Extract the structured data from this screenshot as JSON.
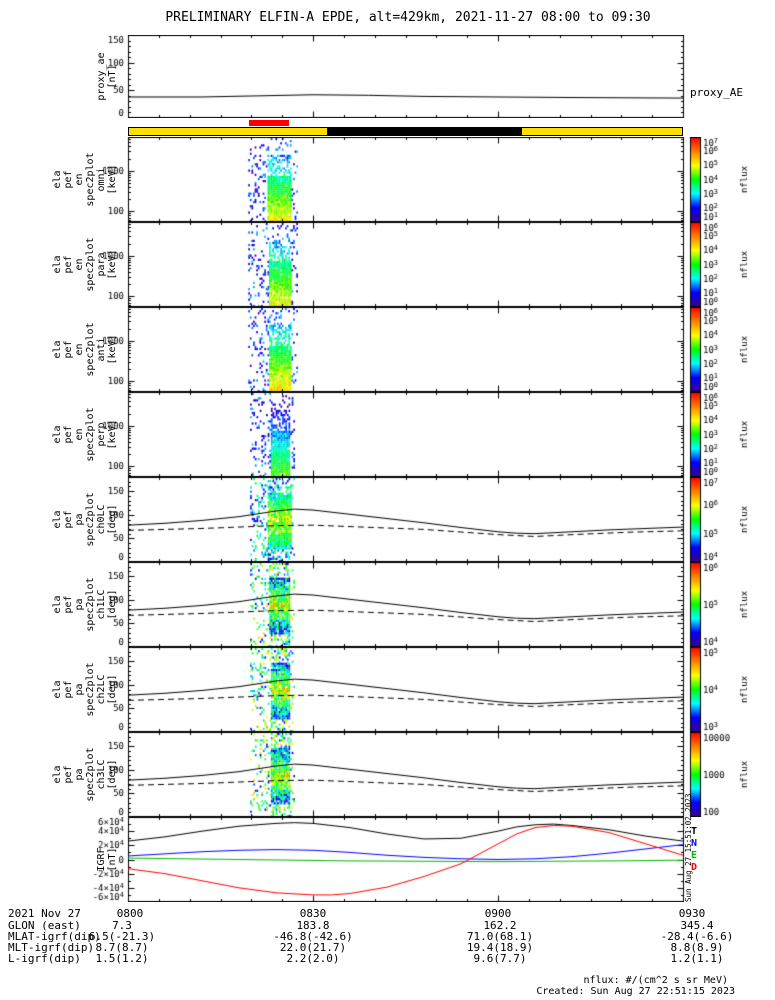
{
  "title": "PRELIMINARY ELFIN-A EPDE, alt=429km, 2021-11-27 08:00 to 09:30",
  "igrf_component_labels": [
    {
      "text": "T",
      "color": "#000000"
    },
    {
      "text": "N",
      "color": "#0000ff"
    },
    {
      "text": "E",
      "color": "#00bb00"
    },
    {
      "text": "D",
      "color": "#ff0000"
    }
  ],
  "footer": {
    "date": "2021 Nov 27",
    "xticks": [
      "0800",
      "0830",
      "0900",
      "0930"
    ],
    "rows": [
      {
        "label": "GLON (east)",
        "values": [
          "7.3",
          "183.8",
          "162.2",
          "345.4"
        ]
      },
      {
        "label": "MLAT-igrf(dip)",
        "values": [
          "6.5(-21.3)",
          "-46.8(-42.6)",
          "71.0(68.1)",
          "-28.4(-6.6)"
        ]
      },
      {
        "label": "MLT-igrf(dip)",
        "values": [
          "8.7(8.7)",
          "22.0(21.7)",
          "19.4(18.9)",
          "8.8(8.9)"
        ]
      },
      {
        "label": "L-igrf(dip)",
        "values": [
          "1.5(1.2)",
          "2.2(2.0)",
          "9.6(7.7)",
          "1.2(1.1)"
        ]
      }
    ],
    "units_note": "nflux: #/(cm^2 s sr MeV)",
    "created": "Created: Sun Aug 27 22:51:15 2023",
    "side_timestamp": "Sun Aug 27 15:51:02 2023"
  },
  "chart_data": {
    "type": "multi-panel time-series and spectrogram stack",
    "x_axis": {
      "start_hour": 8.0,
      "end_hour": 9.5,
      "date": "2021-11-27",
      "tick_hours": [
        8.0,
        8.5,
        9.0,
        9.5
      ],
      "tick_labels": [
        "0800",
        "0830",
        "0900",
        "0930"
      ]
    },
    "status_bar": {
      "base": {
        "color": "#ffdf00",
        "t": [
          8.0,
          9.5
        ]
      },
      "black": {
        "color": "#000000",
        "t": [
          8.538,
          9.065
        ]
      },
      "marker": {
        "color": "#ff0000",
        "t": [
          8.327,
          8.435
        ]
      }
    },
    "losscone_deg": {
      "solid": [
        [
          8.0,
          78
        ],
        [
          8.1,
          82
        ],
        [
          8.2,
          88
        ],
        [
          8.3,
          96
        ],
        [
          8.4,
          108
        ],
        [
          8.45,
          112
        ],
        [
          8.5,
          110
        ],
        [
          8.6,
          101
        ],
        [
          8.7,
          92
        ],
        [
          8.8,
          83
        ],
        [
          8.9,
          73
        ],
        [
          9.0,
          64
        ],
        [
          9.05,
          61
        ],
        [
          9.1,
          60
        ],
        [
          9.2,
          64
        ],
        [
          9.3,
          68
        ],
        [
          9.4,
          71
        ],
        [
          9.5,
          74
        ]
      ],
      "dashed": [
        [
          8.0,
          67
        ],
        [
          8.2,
          71
        ],
        [
          8.4,
          77
        ],
        [
          8.5,
          78
        ],
        [
          8.6,
          75
        ],
        [
          8.8,
          69
        ],
        [
          9.0,
          58
        ],
        [
          9.1,
          54
        ],
        [
          9.2,
          58
        ],
        [
          9.35,
          63
        ],
        [
          9.5,
          66
        ]
      ]
    },
    "panels": [
      {
        "id": "p-proxy",
        "type": "line",
        "right_label": "proxy_AE",
        "ylabel_lines": [
          "proxy_ae",
          "[nT]"
        ],
        "ylim": [
          0,
          150
        ],
        "yticks": [
          0,
          50,
          100,
          150
        ],
        "yminor": 10,
        "series": [
          {
            "name": "proxy_AE",
            "color": "#000000",
            "points": [
              [
                8.0,
                38
              ],
              [
                8.2,
                38
              ],
              [
                8.35,
                40
              ],
              [
                8.5,
                42
              ],
              [
                8.65,
                41
              ],
              [
                8.8,
                39
              ],
              [
                9.0,
                38
              ],
              [
                9.2,
                37
              ],
              [
                9.5,
                36
              ]
            ]
          }
        ]
      },
      {
        "id": "p-spec0",
        "type": "spectrogram",
        "ylabel_lines": [
          "ela",
          "pef",
          "en",
          "spec2plot",
          "omni",
          "[keV]"
        ],
        "yscale": "log",
        "ylim": [
          55,
          6800
        ],
        "ytick_labels": [
          100,
          1000
        ],
        "colorbar": {
          "label": "nflux",
          "format": "pow",
          "exponents": [
            7,
            6,
            5,
            4,
            3,
            2,
            1
          ],
          "clim_log10": [
            1,
            7
          ]
        },
        "burst": {
          "sparse_t": [
            8.325,
            8.455
          ],
          "core_t": [
            8.375,
            8.44
          ],
          "peak_log10": 5.2,
          "seed": 11
        }
      },
      {
        "id": "p-spec1",
        "type": "spectrogram",
        "ylabel_lines": [
          "ela",
          "pef",
          "en",
          "spec2plot",
          "para",
          "[keV]"
        ],
        "yscale": "log",
        "ylim": [
          55,
          6800
        ],
        "ytick_labels": [
          100,
          1000
        ],
        "colorbar": {
          "label": "nflux",
          "format": "pow",
          "exponents": [
            6,
            5,
            4,
            3,
            2,
            1,
            0
          ],
          "clim_log10": [
            0,
            6
          ]
        },
        "burst": {
          "sparse_t": [
            8.325,
            8.455
          ],
          "core_t": [
            8.38,
            8.44
          ],
          "peak_log10": 4.2,
          "seed": 22
        }
      },
      {
        "id": "p-spec2",
        "type": "spectrogram",
        "ylabel_lines": [
          "ela",
          "pef",
          "en",
          "spec2plot",
          "anti",
          "[keV]"
        ],
        "yscale": "log",
        "ylim": [
          55,
          6800
        ],
        "ytick_labels": [
          100,
          1000
        ],
        "colorbar": {
          "label": "nflux",
          "format": "pow",
          "exponents": [
            6,
            5,
            4,
            3,
            2,
            1,
            0
          ],
          "clim_log10": [
            0,
            6
          ]
        },
        "burst": {
          "sparse_t": [
            8.325,
            8.455
          ],
          "core_t": [
            8.378,
            8.44
          ],
          "peak_log10": 4.4,
          "seed": 33
        }
      },
      {
        "id": "p-spec3",
        "type": "spectrogram",
        "ylabel_lines": [
          "ela",
          "pef",
          "en",
          "spec2plot",
          "perp",
          "[keV]"
        ],
        "yscale": "log",
        "ylim": [
          55,
          6800
        ],
        "ytick_labels": [
          100,
          1000
        ],
        "colorbar": {
          "label": "nflux",
          "format": "pow",
          "exponents": [
            6,
            5,
            4,
            3,
            2,
            1,
            0
          ],
          "clim_log10": [
            0,
            6
          ]
        },
        "burst": {
          "sparse_t": [
            8.33,
            8.45
          ],
          "core_t": [
            8.385,
            8.435
          ],
          "peak_log10": 3.4,
          "seed": 44
        }
      },
      {
        "id": "p-pa0",
        "type": "pitch",
        "ylabel_lines": [
          "ela",
          "pef",
          "pa",
          "spec2plot",
          "ch0LC",
          "[deg]"
        ],
        "ylim": [
          0,
          180
        ],
        "yticks": [
          0,
          50,
          100,
          150
        ],
        "yminor": 10,
        "colorbar": {
          "label": "nflux",
          "format": "pow",
          "exponents": [
            7,
            6,
            5,
            4
          ],
          "clim_log10": [
            4,
            7
          ]
        },
        "burst": {
          "sparse_t": [
            8.33,
            8.45
          ],
          "core_t": [
            8.375,
            8.44
          ],
          "peak_log10": 5.9,
          "seed": 55
        }
      },
      {
        "id": "p-pa1",
        "type": "pitch",
        "ylabel_lines": [
          "ela",
          "pef",
          "pa",
          "spec2plot",
          "ch1LC",
          "[deg]"
        ],
        "ylim": [
          0,
          180
        ],
        "yticks": [
          0,
          50,
          100,
          150
        ],
        "yminor": 10,
        "colorbar": {
          "label": "nflux",
          "format": "pow",
          "exponents": [
            6,
            5,
            4
          ],
          "clim_log10": [
            4,
            6
          ]
        },
        "burst": {
          "sparse_t": [
            8.33,
            8.45
          ],
          "core_t": [
            8.378,
            8.438
          ],
          "peak_log10": 5.3,
          "seed": 66
        }
      },
      {
        "id": "p-pa2",
        "type": "pitch",
        "ylabel_lines": [
          "ela",
          "pef",
          "pa",
          "spec2plot",
          "ch2LC",
          "[deg]"
        ],
        "ylim": [
          0,
          180
        ],
        "yticks": [
          0,
          50,
          100,
          150
        ],
        "yminor": 10,
        "colorbar": {
          "label": "nflux",
          "format": "pow",
          "exponents": [
            5,
            4,
            3
          ],
          "clim_log10": [
            3,
            5
          ]
        },
        "burst": {
          "sparse_t": [
            8.33,
            8.45
          ],
          "core_t": [
            8.382,
            8.435
          ],
          "peak_log10": 4.3,
          "seed": 77
        }
      },
      {
        "id": "p-pa3",
        "type": "pitch",
        "ylabel_lines": [
          "ela",
          "pef",
          "pa",
          "spec2plot",
          "ch3LC",
          "[deg]"
        ],
        "ylim": [
          0,
          180
        ],
        "yticks": [
          0,
          50,
          100,
          150
        ],
        "yminor": 10,
        "colorbar": {
          "label": "nflux",
          "format": "linear",
          "exponents": [
            4,
            3,
            2
          ],
          "clim_log10": [
            2,
            4
          ]
        },
        "burst": {
          "sparse_t": [
            8.33,
            8.45
          ],
          "core_t": [
            8.382,
            8.438
          ],
          "peak_log10": 3.3,
          "seed": 88
        }
      },
      {
        "id": "p-igrf",
        "type": "line",
        "ylabel_lines": [
          "IGRF",
          "[nT]"
        ],
        "ylim": [
          -60000,
          60000
        ],
        "yminor": 10000,
        "yticks_pow": [
          {
            "v": 60000,
            "mant": "6"
          },
          {
            "v": 40000,
            "mant": "4"
          },
          {
            "v": 20000,
            "mant": "2"
          },
          {
            "v": 0,
            "mant": "0"
          },
          {
            "v": -20000,
            "mant": "-2"
          },
          {
            "v": -40000,
            "mant": "-4"
          },
          {
            "v": -60000,
            "mant": "-6"
          }
        ],
        "series": [
          {
            "name": "T",
            "color": "#000000",
            "points": [
              [
                8.0,
                26000
              ],
              [
                8.1,
                32000
              ],
              [
                8.2,
                40000
              ],
              [
                8.3,
                47000
              ],
              [
                8.4,
                51000
              ],
              [
                8.45,
                52000
              ],
              [
                8.5,
                51000
              ],
              [
                8.6,
                45000
              ],
              [
                8.7,
                36000
              ],
              [
                8.8,
                29000
              ],
              [
                8.9,
                30000
              ],
              [
                9.0,
                40000
              ],
              [
                9.05,
                46000
              ],
              [
                9.1,
                49000
              ],
              [
                9.15,
                50000
              ],
              [
                9.2,
                48000
              ],
              [
                9.3,
                42000
              ],
              [
                9.4,
                33000
              ],
              [
                9.5,
                26000
              ]
            ]
          },
          {
            "name": "N",
            "color": "#0000ff",
            "points": [
              [
                8.0,
                5000
              ],
              [
                8.1,
                8000
              ],
              [
                8.2,
                11000
              ],
              [
                8.3,
                13000
              ],
              [
                8.4,
                14000
              ],
              [
                8.5,
                13000
              ],
              [
                8.6,
                10000
              ],
              [
                8.7,
                6000
              ],
              [
                8.8,
                3000
              ],
              [
                8.9,
                1000
              ],
              [
                9.0,
                0
              ],
              [
                9.1,
                1000
              ],
              [
                9.2,
                4000
              ],
              [
                9.3,
                9000
              ],
              [
                9.4,
                15000
              ],
              [
                9.5,
                21000
              ]
            ]
          },
          {
            "name": "E",
            "color": "#00bb00",
            "points": [
              [
                8.0,
                2000
              ],
              [
                8.3,
                0
              ],
              [
                8.6,
                -2000
              ],
              [
                9.0,
                -3000
              ],
              [
                9.3,
                -2000
              ],
              [
                9.5,
                -1000
              ]
            ]
          },
          {
            "name": "D",
            "color": "#ff0000",
            "points": [
              [
                8.0,
                -13000
              ],
              [
                8.1,
                -20000
              ],
              [
                8.2,
                -30000
              ],
              [
                8.3,
                -40000
              ],
              [
                8.4,
                -47000
              ],
              [
                8.5,
                -50000
              ],
              [
                8.55,
                -50000
              ],
              [
                8.6,
                -48000
              ],
              [
                8.7,
                -39000
              ],
              [
                8.8,
                -24000
              ],
              [
                8.9,
                -6000
              ],
              [
                9.0,
                22000
              ],
              [
                9.05,
                36000
              ],
              [
                9.1,
                45000
              ],
              [
                9.15,
                48000
              ],
              [
                9.2,
                47000
              ],
              [
                9.3,
                38000
              ],
              [
                9.4,
                22000
              ],
              [
                9.5,
                6000
              ]
            ]
          }
        ]
      }
    ]
  }
}
